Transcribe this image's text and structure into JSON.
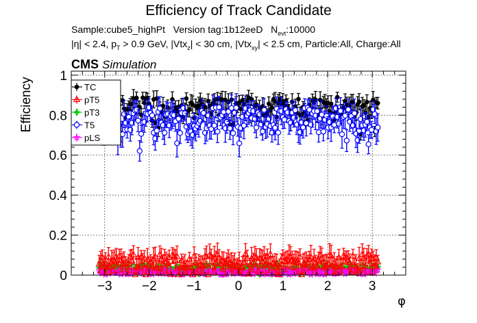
{
  "chart_data": {
    "type": "scatter",
    "title": "Efficiency of Track Candidate",
    "subtitle_line1": {
      "sample": "Sample:cube5_highPt",
      "version": "Version tag:1b12eeD",
      "n_main": "N",
      "n_sub": "evt",
      "n_value": ":10000"
    },
    "subtitle_line2": {
      "eta": "|η| < 2.4, p",
      "pt_sub": "T",
      "pt_cut": " > 0.9 GeV, |Vtx",
      "vz_sub": "z",
      "vz_cut": "| < 30 cm, |Vtx",
      "vxy_sub": "xy",
      "rest": "| < 2.5 cm, Particle:All, Charge:All"
    },
    "cms_label": "CMS",
    "simulation_label": "Simulation",
    "xlabel": "φ",
    "ylabel": "Efficiency",
    "xlim": [
      -3.75,
      3.75
    ],
    "ylim": [
      0,
      1.02
    ],
    "x_ticks": [
      -3,
      -2,
      -1,
      0,
      1,
      2,
      3
    ],
    "x_tick_labels": [
      "−3",
      "−2",
      "−1",
      "0",
      "1",
      "2",
      "3"
    ],
    "y_ticks": [
      0,
      0.2,
      0.4,
      0.6,
      0.8,
      1
    ],
    "y_tick_labels": [
      "0",
      "0.2",
      "0.4",
      "0.6",
      "0.8",
      "1"
    ],
    "grid": true,
    "legend_position": "top-left",
    "bins": 180,
    "phi_range": [
      -3.14159,
      3.14159
    ],
    "series": [
      {
        "name": "TC",
        "color": "#000000",
        "marker": "filled-circle",
        "mean": 0.84,
        "spread": 0.05,
        "err": 0.035
      },
      {
        "name": "pT5",
        "color": "#ff0000",
        "marker": "open-triangle",
        "mean": 0.07,
        "spread": 0.035,
        "err": 0.045
      },
      {
        "name": "pT3",
        "color": "#00cc00",
        "marker": "filled-cross",
        "mean": 0.03,
        "spread": 0.02,
        "err": 0.02
      },
      {
        "name": "T5",
        "color": "#0000ff",
        "marker": "open-circle",
        "mean": 0.77,
        "spread": 0.07,
        "err": 0.055
      },
      {
        "name": "pLS",
        "color": "#ff00ff",
        "marker": "open-star",
        "mean": 0.015,
        "spread": 0.012,
        "err": 0.012
      }
    ]
  }
}
